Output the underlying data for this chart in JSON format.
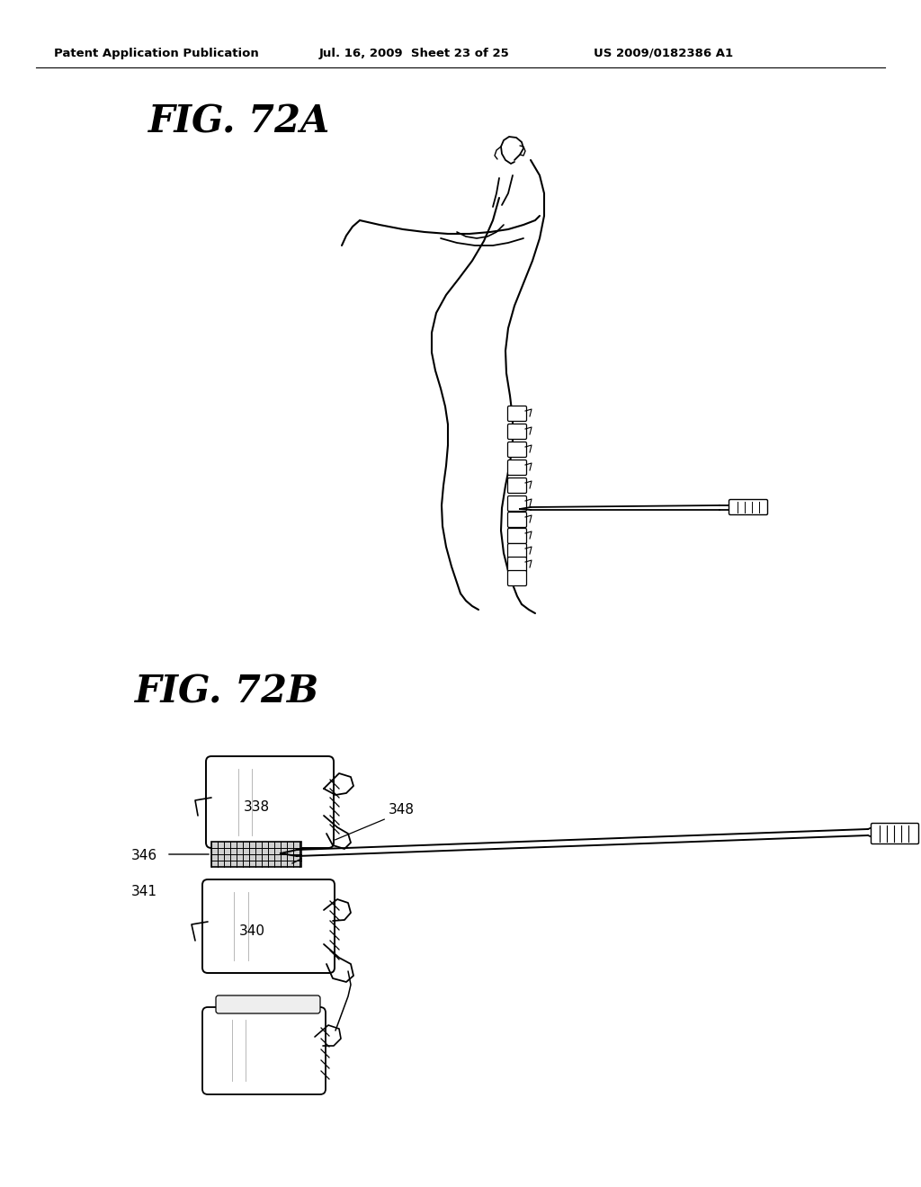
{
  "background_color": "#ffffff",
  "header_left": "Patent Application Publication",
  "header_mid": "Jul. 16, 2009  Sheet 23 of 25",
  "header_right": "US 2009/0182386 A1",
  "fig_72a_label": "FIG. 72A",
  "fig_72b_label": "FIG. 72B",
  "label_338": "338",
  "label_340": "340",
  "label_341": "341",
  "label_346": "346",
  "label_348": "348",
  "line_color": "#000000",
  "text_color": "#000000",
  "header_fontsize": 9.5,
  "fig_label_fontsize": 30,
  "annotation_fontsize": 11
}
